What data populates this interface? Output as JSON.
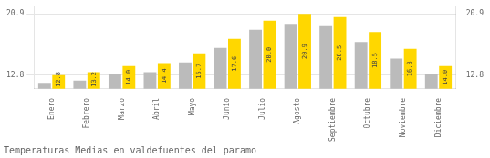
{
  "chart_data": {
    "type": "bar",
    "title": "Temperaturas Medias en valdefuentes del paramo",
    "categories": [
      "Enero",
      "Febrero",
      "Marzo",
      "Abril",
      "Mayo",
      "Junio",
      "Julio",
      "Agosto",
      "Septiembre",
      "Octubre",
      "Noviembre",
      "Diciembre"
    ],
    "series": [
      {
        "color": "#BBBBBB",
        "values": [
          11.8,
          12.1,
          12.9,
          13.2,
          14.5,
          16.4,
          18.8,
          19.6,
          19.3,
          17.2,
          15.0,
          12.9
        ]
      },
      {
        "color": "#FFD700",
        "values": [
          12.8,
          13.2,
          14.0,
          14.4,
          15.7,
          17.6,
          20.0,
          20.9,
          20.5,
          18.5,
          16.3,
          14.0
        ],
        "data_labels": true,
        "value_labels": [
          "12.8",
          "13.2",
          "14.0",
          "14.4",
          "15.7",
          "17.6",
          "20.0",
          "20.9",
          "20.5",
          "18.5",
          "16.3",
          "14.0"
        ]
      }
    ],
    "ylim": [
      11.0,
      21.8
    ],
    "yticks": [
      12.8,
      20.9
    ],
    "y2lim": [
      11.0,
      21.8
    ],
    "y2ticks": [
      12.8,
      20.9
    ],
    "grid": true
  }
}
